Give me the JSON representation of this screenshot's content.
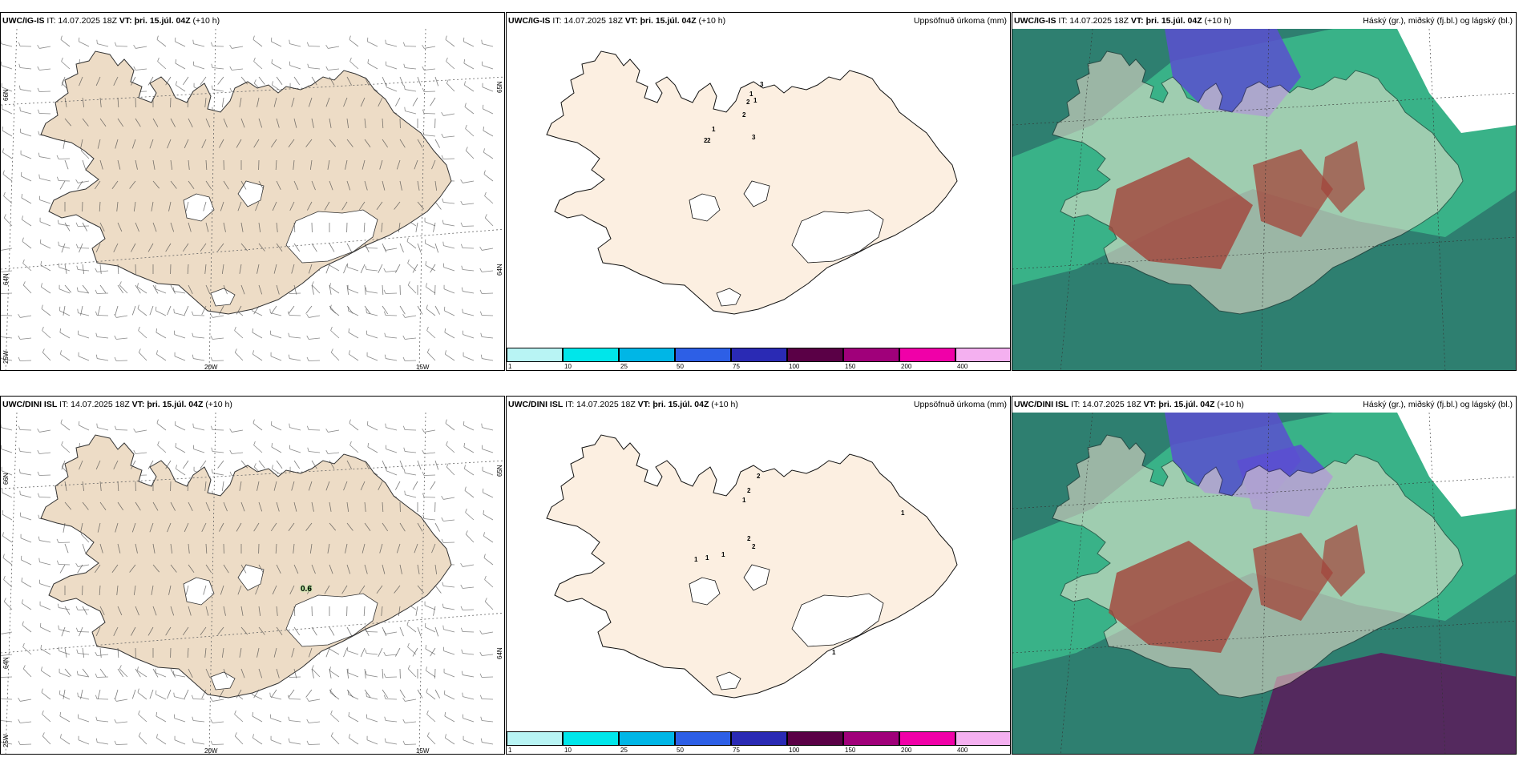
{
  "rows": [
    {
      "model": "UWC/IG-IS",
      "it_text": "IT: 14.07.2025 18Z",
      "vt_label": "VT:",
      "vt_value": "þri. 15.júl. 04Z",
      "lead": "(+10 h)",
      "wind_panel": {
        "lat_labels": [
          "66N",
          "64N",
          "25W"
        ],
        "lat_labels_right": [
          "65N",
          "64N"
        ],
        "lon_labels": [
          "20W",
          "15W"
        ],
        "value_label": ""
      },
      "precip_panel": {
        "title": "Uppsöfnuð úrkoma (mm)",
        "point_values": [
          "1",
          "3",
          "2",
          "1",
          "2",
          "2",
          "1",
          "3",
          "2"
        ]
      },
      "cloud_panel": {
        "title": "Háský (gr.), miðský (fj.bl.) og lágský (bl.)"
      }
    },
    {
      "model": "UWC/DINI ISL",
      "it_text": "IT: 14.07.2025 18Z",
      "vt_label": "VT:",
      "vt_value": "þri. 15.júl. 04Z",
      "lead": "(+10 h)",
      "wind_panel": {
        "lat_labels": [
          "66N",
          "64N",
          "25W"
        ],
        "lat_labels_right": [
          "65N",
          "64N"
        ],
        "lon_labels": [
          "20W",
          "15W"
        ],
        "value_label": "0.6"
      },
      "precip_panel": {
        "title": "Uppsöfnuð úrkoma (mm)",
        "point_values": [
          "2",
          "2",
          "1",
          "1",
          "1",
          "1",
          "2",
          "2",
          "1",
          "1"
        ]
      },
      "cloud_panel": {
        "title": "Háský (gr.), miðský (fj.bl.) og lágský (bl.)"
      }
    }
  ],
  "colorbar": {
    "labels": [
      "1",
      "10",
      "25",
      "50",
      "75",
      "100",
      "150",
      "200",
      "400"
    ],
    "colors": [
      "#b8f4f4",
      "#00e6ea",
      "#00b6e6",
      "#2d5fe6",
      "#2a2ab4",
      "#5a0046",
      "#a0007a",
      "#f000a8",
      "#f4b0f0"
    ]
  },
  "colors": {
    "land_wind": "#eddcc6",
    "land_precip": "#fcefe1",
    "ice": "#ffffff",
    "cloud_high": "#1e8a6e",
    "cloud_mid": "#5b4fd0",
    "cloud_low": "#a3443a"
  }
}
